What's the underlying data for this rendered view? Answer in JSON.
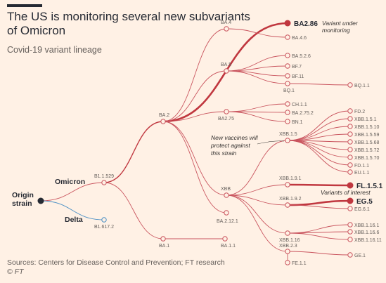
{
  "header": {
    "title": "The US is monitoring several new subvariants of Omicron",
    "subtitle": "Covid-19 variant lineage"
  },
  "footer": {
    "source": "Sources: Centers for Disease Control and Prevention; FT research",
    "copyright": "© FT"
  },
  "colors": {
    "background": "#fff1e5",
    "omicron_line": "#c9545e",
    "highlight_line": "#c0373f",
    "delta_line": "#4a8fc4",
    "root_node": "#262a33"
  },
  "chart_data": {
    "type": "tree",
    "root": "Origin strain",
    "branch_labels": [
      "Omicron",
      "Delta"
    ],
    "nodes": [
      {
        "id": "origin",
        "label": "Origin strain",
        "parent": null
      },
      {
        "id": "B11529",
        "label": "B1.1.529",
        "parent": "origin"
      },
      {
        "id": "B16172",
        "label": "B1.617.2",
        "parent": "origin"
      },
      {
        "id": "BA2",
        "label": "BA.2",
        "parent": "B11529"
      },
      {
        "id": "BA1",
        "label": "BA.1",
        "parent": "B11529"
      },
      {
        "id": "BA11",
        "label": "BA.1.1",
        "parent": "BA1"
      },
      {
        "id": "BA4",
        "label": "BA.4",
        "parent": "BA2"
      },
      {
        "id": "BA286",
        "label": "BA2.86",
        "parent": "BA2",
        "highlight": true
      },
      {
        "id": "BA46",
        "label": "BA.4.6",
        "parent": "BA4"
      },
      {
        "id": "BA5",
        "label": "BA.5",
        "parent": "BA2"
      },
      {
        "id": "BA526",
        "label": "BA.5.2.6",
        "parent": "BA5"
      },
      {
        "id": "BF7",
        "label": "BF.7",
        "parent": "BA5"
      },
      {
        "id": "BF11",
        "label": "BF.11",
        "parent": "BA5"
      },
      {
        "id": "BQ1",
        "label": "BQ.1",
        "parent": "BA5"
      },
      {
        "id": "BQ11",
        "label": "BQ.1.1",
        "parent": "BQ1"
      },
      {
        "id": "BA275",
        "label": "BA2.75",
        "parent": "BA2"
      },
      {
        "id": "CH11",
        "label": "CH.1.1",
        "parent": "BA275"
      },
      {
        "id": "BA2752",
        "label": "BA.2.75.2",
        "parent": "BA275"
      },
      {
        "id": "BN1",
        "label": "BN.1",
        "parent": "BA275"
      },
      {
        "id": "XBB",
        "label": "XBB",
        "parent": "BA2"
      },
      {
        "id": "BA2121",
        "label": "BA.2.12.1",
        "parent": "BA2"
      },
      {
        "id": "XBB15",
        "label": "XBB.1.5",
        "parent": "XBB"
      },
      {
        "id": "FD2",
        "label": "FD.2",
        "parent": "XBB15"
      },
      {
        "id": "XBB151",
        "label": "XBB.1.5.1",
        "parent": "XBB15"
      },
      {
        "id": "XBB1510",
        "label": "XBB.1.5.10",
        "parent": "XBB15"
      },
      {
        "id": "XBB1559",
        "label": "XBB.1.5.59",
        "parent": "XBB15"
      },
      {
        "id": "XBB1568",
        "label": "XBB.1.5.68",
        "parent": "XBB15"
      },
      {
        "id": "XBB1572",
        "label": "XBB.1.5.72",
        "parent": "XBB15"
      },
      {
        "id": "XBB1570",
        "label": "XBB.1.5.70",
        "parent": "XBB15"
      },
      {
        "id": "FD11",
        "label": "FD.1.1",
        "parent": "XBB15"
      },
      {
        "id": "EU11",
        "label": "EU.1.1",
        "parent": "XBB15"
      },
      {
        "id": "XBB191",
        "label": "XBB.1.9.1",
        "parent": "XBB"
      },
      {
        "id": "FL151",
        "label": "FL.1.5.1",
        "parent": "XBB191",
        "highlight": true
      },
      {
        "id": "XBB192",
        "label": "XBB.1.9.2",
        "parent": "XBB"
      },
      {
        "id": "EG5",
        "label": "EG.5",
        "parent": "XBB192",
        "highlight": true
      },
      {
        "id": "EG61",
        "label": "EG.6.1",
        "parent": "XBB192"
      },
      {
        "id": "XBB116",
        "label": "XBB.1.16",
        "parent": "XBB"
      },
      {
        "id": "XBB1161",
        "label": "XBB.1.16.1",
        "parent": "XBB116"
      },
      {
        "id": "XBB1166",
        "label": "XBB.1.16.6",
        "parent": "XBB116"
      },
      {
        "id": "XBB11611",
        "label": "XBB.1.16.11",
        "parent": "XBB116"
      },
      {
        "id": "XBB23",
        "label": "XBB.2.3",
        "parent": "XBB"
      },
      {
        "id": "GE1",
        "label": "GE.1",
        "parent": "XBB23"
      },
      {
        "id": "FE11",
        "label": "FE.1.1",
        "parent": "XBB23"
      }
    ],
    "annotations": [
      {
        "text": "Variant under monitoring",
        "target": "BA2.86"
      },
      {
        "text": "New vaccines will protect against this strain",
        "target": "XBB.1.5"
      },
      {
        "text": "Variants of interest",
        "target": "FL.1.5.1 / EG.5"
      }
    ]
  }
}
